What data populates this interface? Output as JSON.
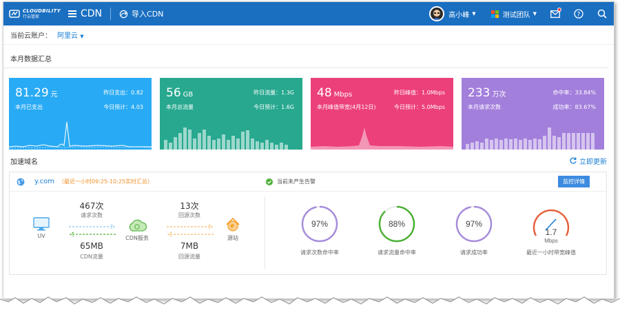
{
  "header": {
    "logo_en": "CLOUDBILITY",
    "logo_cn": "行云管家",
    "title": "CDN",
    "import_label": "导入CDN",
    "user_name": "高小峰",
    "team_name": "测试团队",
    "colors": {
      "bar": "#1a6fc1"
    }
  },
  "account": {
    "label": "当前云账户：",
    "value": "阿里云"
  },
  "summary": {
    "title": "本月数据汇总",
    "cards": [
      {
        "value": "81.29",
        "unit": "元",
        "label": "本月已支出",
        "r1": "昨日支出：0.82",
        "r2": "今日预计：4.03",
        "color": "#29aaf4"
      },
      {
        "value": "56",
        "unit": "GB",
        "label": "本月总流量",
        "r1": "昨日流量：1.3G",
        "r2": "今日预计：1.6G",
        "color": "#27a88f"
      },
      {
        "value": "48",
        "unit": "Mbps",
        "label": "本月峰值带宽(4月12日)",
        "r1": "昨日峰值：1.0Mbps",
        "r2": "今日预计：5.0Mbps",
        "color": "#ec407a"
      },
      {
        "value": "233",
        "unit": "万次",
        "label": "本月请求次数",
        "r1": "命中率：33.84%",
        "r2": "成功率：83.67%",
        "color": "#a37fdc"
      }
    ]
  },
  "domains": {
    "title": "加速域名",
    "refresh_label": "立即更新",
    "item": {
      "name": "y.com",
      "note": "（最近一小时09:25-10:25实时汇总）",
      "alert": "当前未产生告警",
      "monitor_label": "监控详情",
      "uv_label": "UV",
      "requests": "467次",
      "requests_label": "请求次数",
      "cdn_traffic": "65MB",
      "cdn_traffic_label": "CDN流量",
      "cdn_service_label": "CDN服务",
      "origin_requests": "13次",
      "origin_requests_label": "回源次数",
      "origin_traffic": "7MB",
      "origin_traffic_label": "回源流量",
      "origin_label": "源站",
      "gauges": [
        {
          "value": "97%",
          "label": "请求次数命中率",
          "percent": 97,
          "color": "#a78ddb"
        },
        {
          "value": "88%",
          "label": "请求流量命中率",
          "percent": 88,
          "color": "#4cb035"
        },
        {
          "value": "97%",
          "label": "请求成功率",
          "percent": 97,
          "color": "#a78ddb"
        }
      ],
      "bandwidth": {
        "value": "1.7",
        "unit": "Mbps",
        "label": "最近一小时带宽峰值",
        "color": "#e5603b"
      }
    }
  }
}
